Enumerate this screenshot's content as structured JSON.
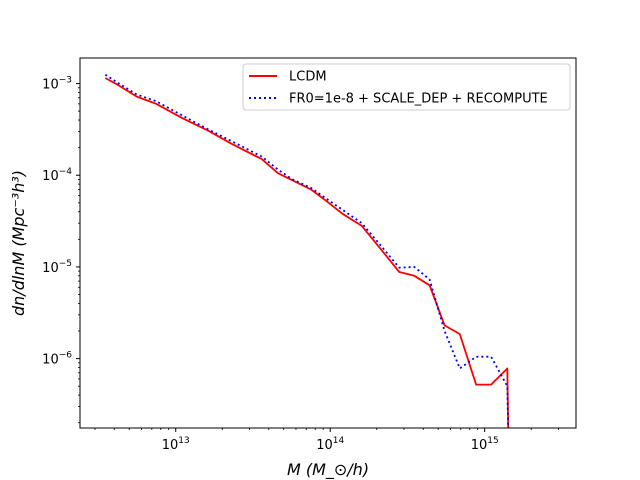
{
  "chart_data": {
    "type": "line",
    "title": "",
    "xlabel": "M (M_⊙/h)",
    "ylabel": "dn/dlnM (Mpc⁻³h³)",
    "x_scale": "log",
    "y_scale": "log",
    "xlim": [
      2400000000000.0,
      3900000000000000.0
    ],
    "ylim": [
      1.75e-07,
      0.0019
    ],
    "x_ticks": [
      {
        "value": 10000000000000.0,
        "base": "10",
        "exp": "13"
      },
      {
        "value": 100000000000000.0,
        "base": "10",
        "exp": "14"
      },
      {
        "value": 1000000000000000.0,
        "base": "10",
        "exp": "15"
      }
    ],
    "y_ticks": [
      {
        "value": 1e-06,
        "base": "10",
        "exp": "−6"
      },
      {
        "value": 1e-05,
        "base": "10",
        "exp": "−5"
      },
      {
        "value": 0.0001,
        "base": "10",
        "exp": "−4"
      },
      {
        "value": 0.001,
        "base": "10",
        "exp": "−3"
      }
    ],
    "legend_position": "top-right",
    "grid": false,
    "series": [
      {
        "name": "LCDM",
        "color": "#ff0000",
        "style": "solid",
        "x": [
          3500000000000.0,
          4300000000000.0,
          5600000000000.0,
          7500000000000.0,
          11000000000000.0,
          16000000000000.0,
          23000000000000.0,
          36000000000000.0,
          46000000000000.0,
          57000000000000.0,
          75000000000000.0,
          95000000000000.0,
          120000000000000.0,
          160000000000000.0,
          210000000000000.0,
          280000000000000.0,
          350000000000000.0,
          440000000000000.0,
          550000000000000.0,
          690000000000000.0,
          880000000000000.0,
          1100000000000000.0,
          1400000000000000.0,
          1420000000000000.0
        ],
        "y": [
          0.00115,
          0.00095,
          0.00072,
          0.0006,
          0.00042,
          0.00031,
          0.00022,
          0.00015,
          0.000105,
          8.8e-05,
          7e-05,
          5.2e-05,
          3.8e-05,
          2.8e-05,
          1.6e-05,
          8.8e-06,
          8e-06,
          6.3e-06,
          2.3e-06,
          1.85e-06,
          5.2e-07,
          5.2e-07,
          7.8e-07,
          1.75e-07
        ]
      },
      {
        "name": "FR0=1e-8 + SCALE_DEP + RECOMPUTE",
        "color": "#0000ff",
        "style": "dotted",
        "x": [
          3500000000000.0,
          4300000000000.0,
          5600000000000.0,
          7500000000000.0,
          11000000000000.0,
          16000000000000.0,
          23000000000000.0,
          36000000000000.0,
          46000000000000.0,
          57000000000000.0,
          75000000000000.0,
          95000000000000.0,
          120000000000000.0,
          160000000000000.0,
          210000000000000.0,
          280000000000000.0,
          350000000000000.0,
          440000000000000.0,
          550000000000000.0,
          690000000000000.0,
          880000000000000.0,
          1100000000000000.0,
          1400000000000000.0,
          1420000000000000.0
        ],
        "y": [
          0.00125,
          0.001,
          0.00076,
          0.00064,
          0.00045,
          0.00032,
          0.000235,
          0.00016,
          0.000115,
          9e-05,
          7.3e-05,
          5.5e-05,
          4.2e-05,
          3e-05,
          1.75e-05,
          9.8e-06,
          1e-05,
          7.3e-06,
          2e-06,
          7.8e-07,
          1.05e-06,
          1.05e-06,
          5e-07,
          1.75e-07
        ]
      }
    ]
  }
}
